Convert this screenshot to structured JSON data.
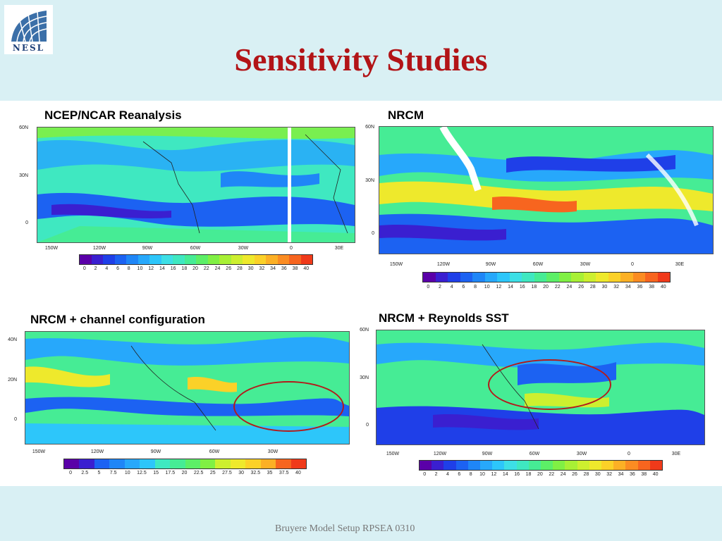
{
  "logo": {
    "text": "NESL"
  },
  "slide": {
    "title": "Sensitivity Studies",
    "footer": "Bruyere Model Setup RPSEA 0310"
  },
  "panels": [
    {
      "title": "NCEP/NCAR Reanalysis",
      "lat_labels": [
        "60N",
        "30N",
        "0"
      ],
      "lon_labels": [
        "150W",
        "120W",
        "90W",
        "60W",
        "30W",
        "0",
        "30E"
      ],
      "colorbar_ticks": [
        "0",
        "2",
        "4",
        "6",
        "8",
        "10",
        "12",
        "14",
        "16",
        "18",
        "20",
        "22",
        "24",
        "26",
        "28",
        "30",
        "32",
        "34",
        "36",
        "38",
        "40"
      ]
    },
    {
      "title": "NRCM",
      "lat_labels": [
        "60N",
        "30N",
        "0"
      ],
      "lon_labels": [
        "150W",
        "120W",
        "90W",
        "60W",
        "30W",
        "0",
        "30E"
      ],
      "colorbar_ticks": [
        "0",
        "2",
        "4",
        "6",
        "8",
        "10",
        "12",
        "14",
        "16",
        "18",
        "20",
        "22",
        "24",
        "26",
        "28",
        "30",
        "32",
        "34",
        "36",
        "38",
        "40"
      ]
    },
    {
      "title": "NRCM + channel configuration",
      "lat_labels": [
        "40N",
        "20N",
        "0"
      ],
      "lon_labels": [
        "150W",
        "120W",
        "90W",
        "60W",
        "30W"
      ],
      "colorbar_ticks": [
        "0",
        "2.5",
        "5",
        "7.5",
        "10",
        "12.5",
        "15",
        "17.5",
        "20",
        "22.5",
        "25",
        "27.5",
        "30",
        "32.5",
        "35",
        "37.5",
        "40"
      ]
    },
    {
      "title": "NRCM + Reynolds SST",
      "lat_labels": [
        "60N",
        "30N",
        "0"
      ],
      "lon_labels": [
        "150W",
        "120W",
        "90W",
        "60W",
        "30W",
        "0",
        "30E"
      ],
      "colorbar_ticks": [
        "0",
        "2",
        "4",
        "6",
        "8",
        "10",
        "12",
        "14",
        "16",
        "18",
        "20",
        "22",
        "24",
        "26",
        "28",
        "30",
        "32",
        "34",
        "36",
        "38",
        "40"
      ]
    }
  ],
  "palette": [
    "#5a00a8",
    "#3a1fd0",
    "#1f3fe8",
    "#1c62f2",
    "#1f86f7",
    "#27a8fb",
    "#2dc6fa",
    "#3ddfe6",
    "#3fe8c1",
    "#46ec95",
    "#5cef67",
    "#80f044",
    "#a8f035",
    "#cdef2f",
    "#eee92c",
    "#fbd128",
    "#fcb025",
    "#fb8c22",
    "#f7651f",
    "#f03a1a"
  ],
  "colors": {
    "title": "#b21417",
    "annotation": "#b31b1b",
    "band": "#d9f0f4"
  }
}
